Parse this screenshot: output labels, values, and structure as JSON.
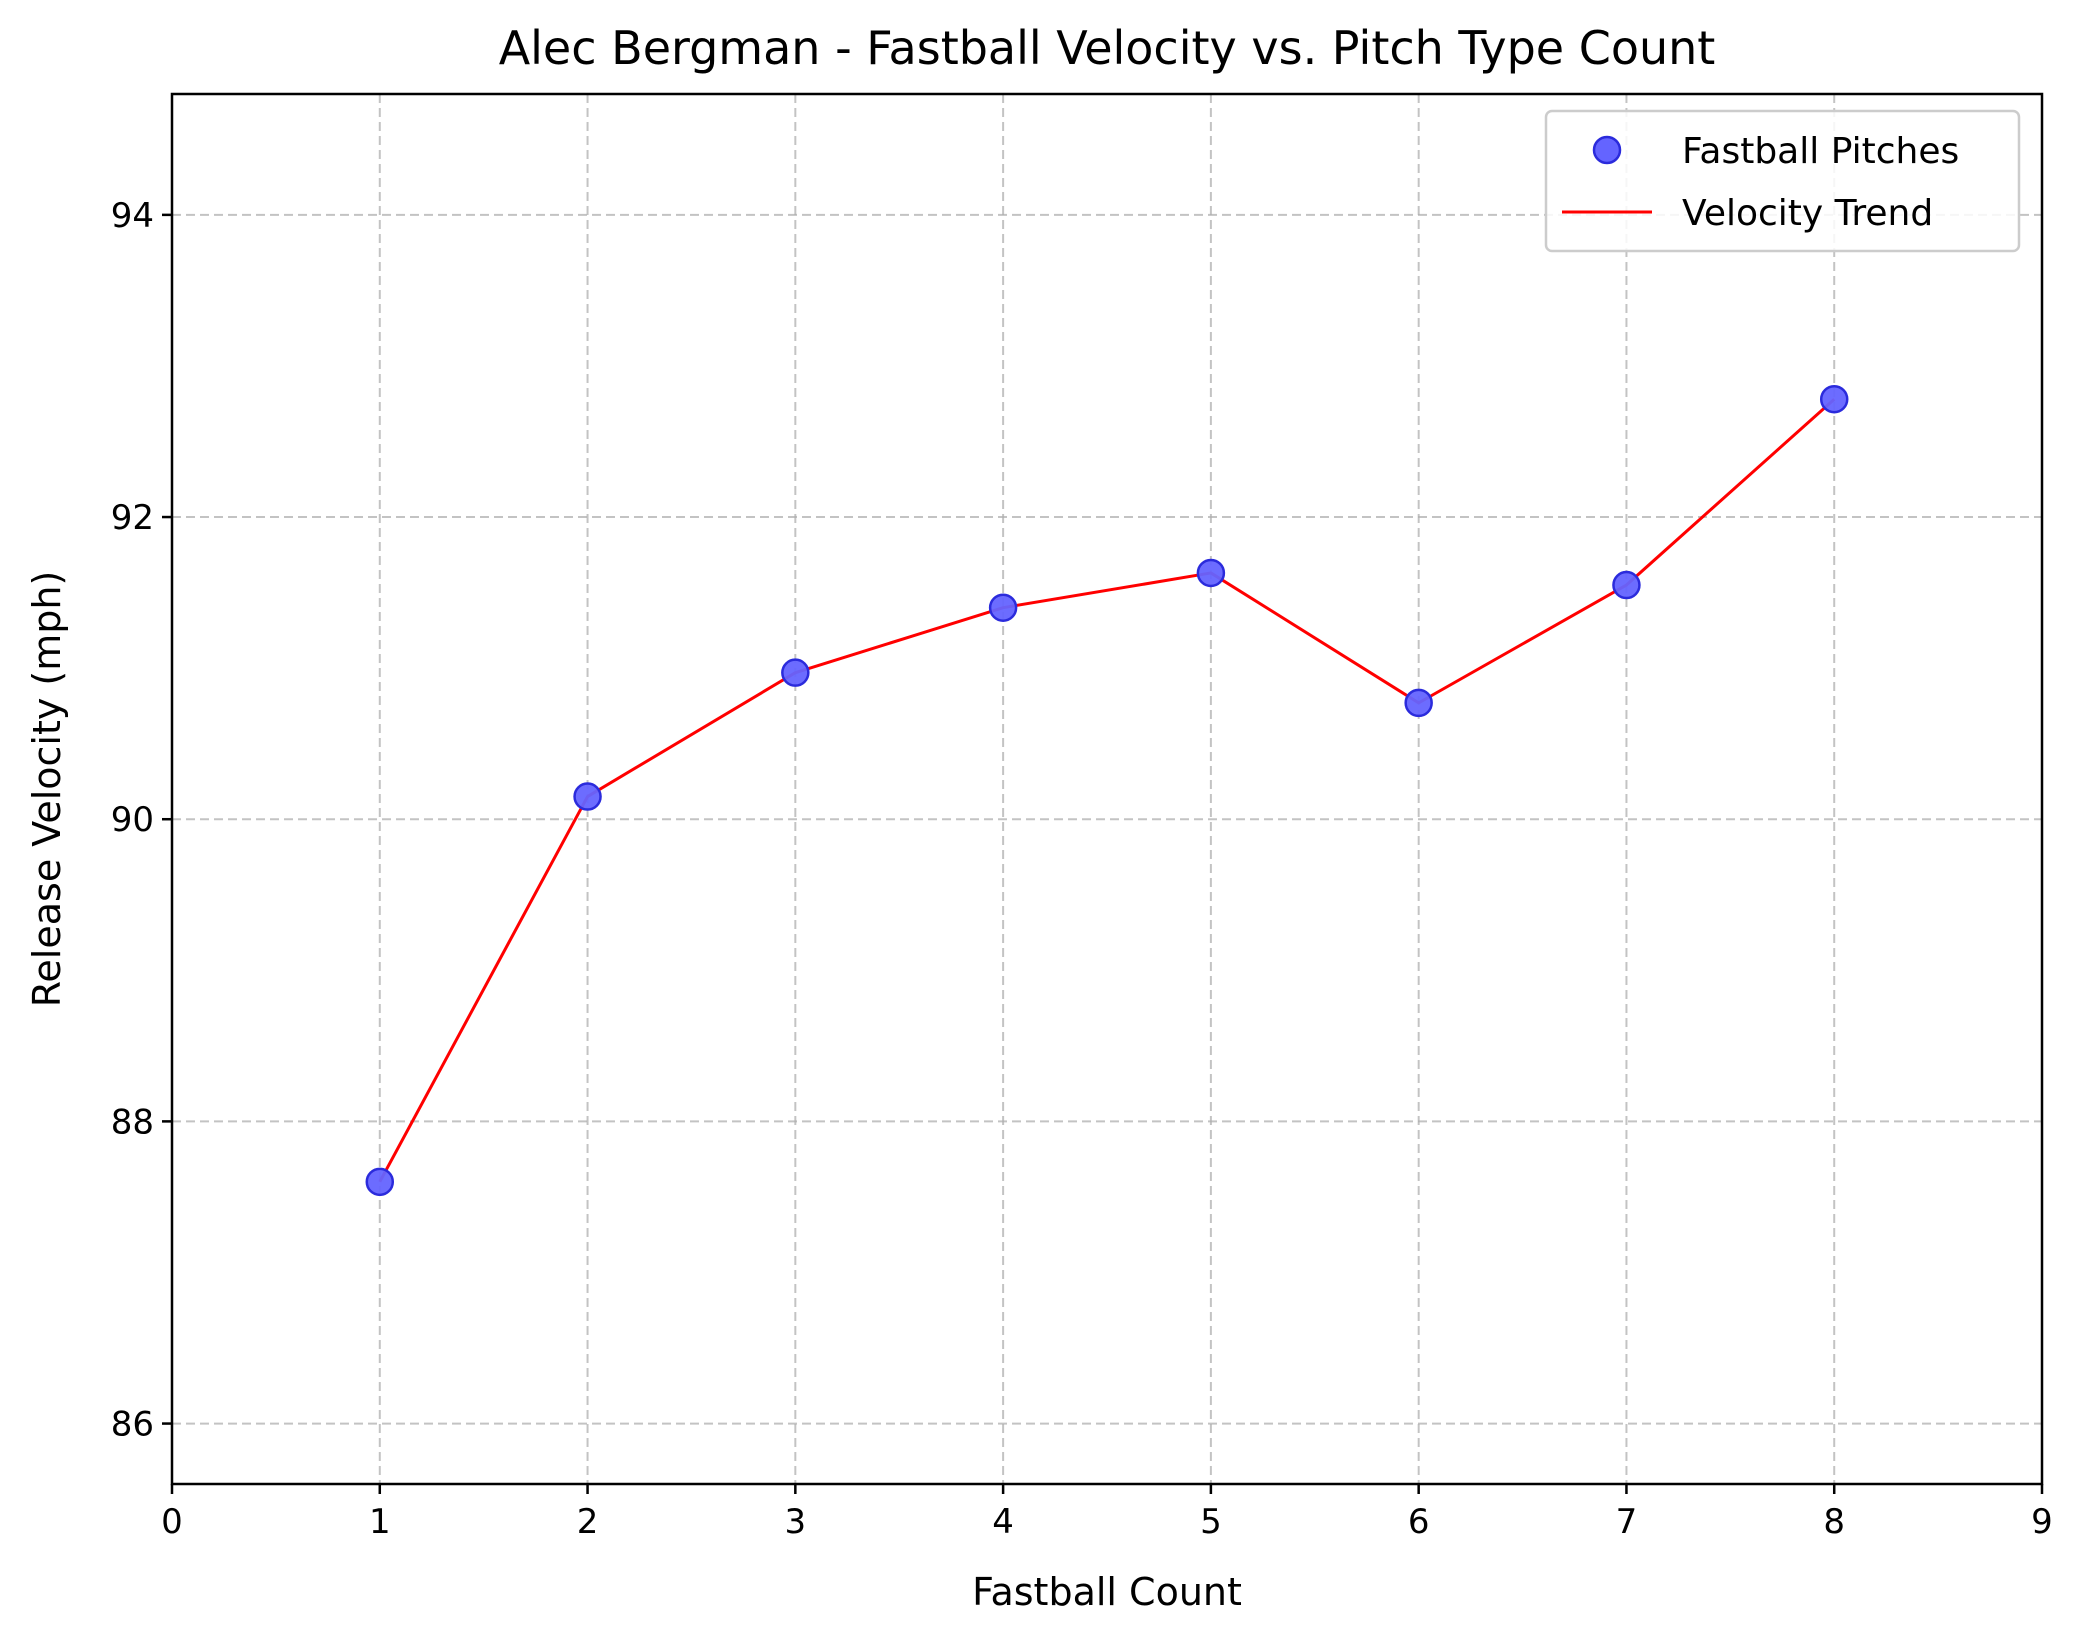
{
  "colors": {
    "scatter_fill": "#6464ff",
    "scatter_edge": "#2b2bdc",
    "trend_line": "#ff0000",
    "grid": "#b0b0b0",
    "legend_edge": "#cccccc"
  },
  "chart_data": {
    "type": "scatter",
    "title": "Alec Bergman - Fastball Velocity vs. Pitch Type Count",
    "xlabel": "Fastball Count",
    "ylabel": "Release Velocity (mph)",
    "xlim": [
      0,
      9
    ],
    "ylim": [
      85.6,
      94.8
    ],
    "x_ticks": [
      0,
      1,
      2,
      3,
      4,
      5,
      6,
      7,
      8,
      9
    ],
    "y_ticks": [
      86,
      88,
      90,
      92,
      94
    ],
    "x_tick_labels": [
      "0",
      "1",
      "2",
      "3",
      "4",
      "5",
      "6",
      "7",
      "8",
      "9"
    ],
    "y_tick_labels": [
      "86",
      "88",
      "90",
      "92",
      "94"
    ],
    "grid": true,
    "legend_position": "top-right",
    "series": [
      {
        "name": "Fastball Pitches",
        "kind": "scatter",
        "x": [
          1,
          2,
          3,
          4,
          5,
          6,
          7,
          8
        ],
        "y": [
          87.6,
          90.15,
          90.97,
          91.4,
          91.63,
          90.77,
          91.55,
          92.78
        ]
      },
      {
        "name": "Velocity Trend",
        "kind": "line",
        "x": [
          1,
          2,
          3,
          4,
          5,
          6,
          7,
          8
        ],
        "y": [
          87.6,
          90.15,
          90.97,
          91.4,
          91.63,
          90.77,
          91.55,
          92.78
        ]
      }
    ]
  }
}
